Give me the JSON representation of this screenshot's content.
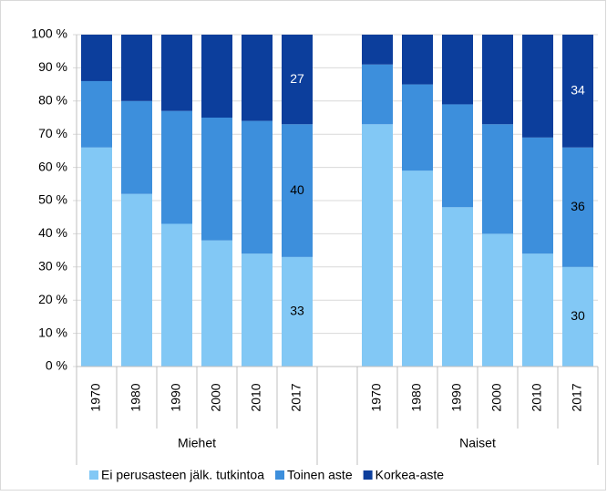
{
  "chart_data": {
    "type": "stacked_bar",
    "categories": [
      "1970",
      "1980",
      "1990",
      "2000",
      "2010",
      "2017",
      null,
      "1970",
      "1980",
      "1990",
      "2000",
      "2010",
      "2017"
    ],
    "groups": [
      "Miehet",
      "Naiset"
    ],
    "series": [
      {
        "name": "Ei perusasteen jälk. tutkintoa",
        "color": "#82c8f5",
        "values": [
          66,
          52,
          43,
          38,
          34,
          33,
          null,
          73,
          59,
          48,
          40,
          34,
          30
        ],
        "value_labels": [
          null,
          null,
          null,
          null,
          null,
          "33",
          null,
          null,
          null,
          null,
          null,
          null,
          "30"
        ]
      },
      {
        "name": "Toinen aste",
        "color": "#3d8fdc",
        "values": [
          20,
          28,
          34,
          37,
          40,
          40,
          null,
          18,
          26,
          31,
          33,
          35,
          36
        ],
        "value_labels": [
          null,
          null,
          null,
          null,
          null,
          "40",
          null,
          null,
          null,
          null,
          null,
          null,
          "36"
        ]
      },
      {
        "name": "Korkea-aste",
        "color": "#0c3e9c",
        "values": [
          14,
          20,
          23,
          25,
          26,
          27,
          null,
          9,
          15,
          21,
          27,
          31,
          34
        ],
        "value_labels": [
          null,
          null,
          null,
          null,
          null,
          "27",
          null,
          null,
          null,
          null,
          null,
          null,
          "34"
        ]
      }
    ],
    "ylim": [
      0,
      100
    ],
    "yticks": [
      {
        "value": 0,
        "label": "0 %"
      },
      {
        "value": 10,
        "label": "10 %"
      },
      {
        "value": 20,
        "label": "20 %"
      },
      {
        "value": 30,
        "label": "30 %"
      },
      {
        "value": 40,
        "label": "40 %"
      },
      {
        "value": 50,
        "label": "50 %"
      },
      {
        "value": 60,
        "label": "60 %"
      },
      {
        "value": 70,
        "label": "70 %"
      },
      {
        "value": 80,
        "label": "80 %"
      },
      {
        "value": 90,
        "label": "90 %"
      },
      {
        "value": 100,
        "label": "100 %"
      }
    ],
    "grid": true,
    "legend": "bottom"
  }
}
